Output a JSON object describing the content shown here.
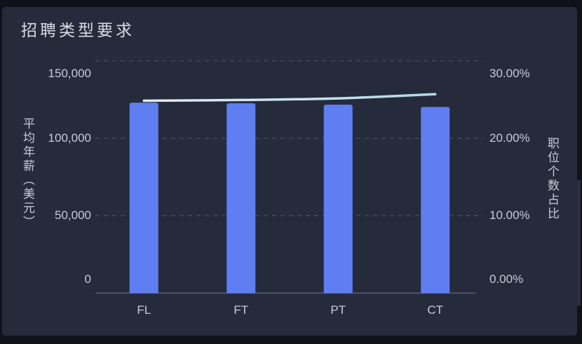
{
  "panel": {
    "title": "招聘类型要求"
  },
  "colors": {
    "background": "#10121a",
    "card": "#262b3b",
    "bar": "#5f7ef2",
    "line_start": "#e0edf4",
    "line_end": "#b7d8ea",
    "grid": "#474c5e",
    "axis_line": "#596076",
    "tick_text": "#c6ccd8",
    "title_text": "#d8dce4",
    "scrollbar_thumb": "#2b2f3e"
  },
  "chart_data": {
    "type": "bar",
    "title": "招聘类型要求",
    "categories": [
      "FL",
      "FT",
      "PT",
      "CT"
    ],
    "series": [
      {
        "name": "平均年薪（美元）",
        "type": "bar",
        "axis": "left",
        "values": [
          123000,
          122600,
          121700,
          120200
        ]
      },
      {
        "name": "职位个数占比",
        "type": "line",
        "axis": "right",
        "unit": "%",
        "values": [
          24.85,
          24.95,
          25.15,
          25.7
        ]
      }
    ],
    "left_axis": {
      "label": "平均年薪（美元）",
      "min": 0,
      "max": 150000,
      "tick_labels": [
        "150,000",
        "100,000",
        "50,000",
        "0"
      ],
      "tick_values": [
        150000,
        100000,
        50000,
        0
      ]
    },
    "right_axis": {
      "label": "职位个数占比",
      "min": 0,
      "max": 30,
      "tick_labels": [
        "30.00%",
        "20.00%",
        "10.00%",
        "0.00%"
      ],
      "tick_values": [
        30,
        20,
        10,
        0
      ]
    },
    "grid": "horizontal-dashed",
    "legend": "none"
  },
  "scrollbar": {
    "visible": true
  }
}
